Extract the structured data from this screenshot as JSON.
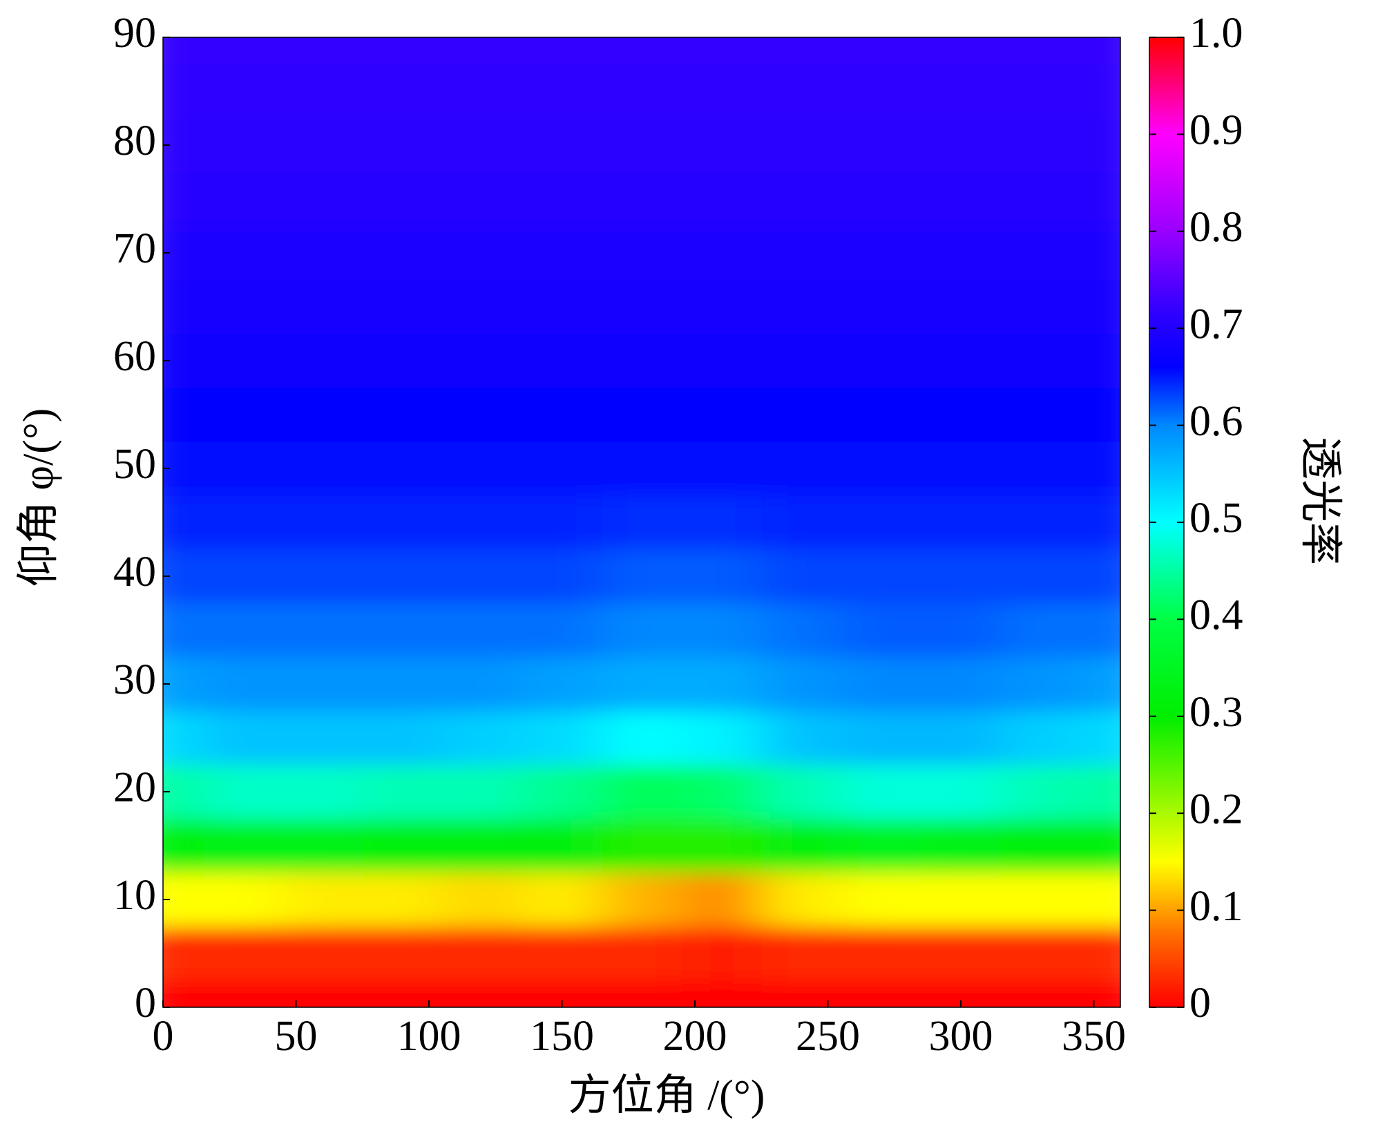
{
  "chart_data": {
    "type": "heatmap",
    "x_label": "方位角 /(°)",
    "y_label": "仰角 φ/(°)",
    "x": [
      0,
      30,
      60,
      90,
      120,
      150,
      180,
      210,
      240,
      270,
      300,
      330,
      360
    ],
    "y": [
      0,
      5,
      10,
      15,
      20,
      25,
      30,
      35,
      40,
      45,
      50,
      55,
      60,
      65,
      70,
      75,
      80,
      85,
      90
    ],
    "z": [
      [
        0,
        0,
        0,
        0,
        0,
        0,
        0,
        0,
        0,
        0,
        0,
        0,
        0
      ],
      [
        0.03,
        0.03,
        0.03,
        0.03,
        0.03,
        0.03,
        0.03,
        0.02,
        0.03,
        0.03,
        0.03,
        0.03,
        0.03
      ],
      [
        0.15,
        0.15,
        0.14,
        0.14,
        0.13,
        0.14,
        0.11,
        0.09,
        0.14,
        0.15,
        0.15,
        0.15,
        0.15
      ],
      [
        0.32,
        0.33,
        0.33,
        0.32,
        0.32,
        0.31,
        0.28,
        0.28,
        0.32,
        0.34,
        0.33,
        0.32,
        0.32
      ],
      [
        0.45,
        0.47,
        0.47,
        0.46,
        0.46,
        0.44,
        0.41,
        0.42,
        0.46,
        0.48,
        0.48,
        0.46,
        0.45
      ],
      [
        0.53,
        0.55,
        0.55,
        0.55,
        0.54,
        0.53,
        0.5,
        0.51,
        0.55,
        0.56,
        0.56,
        0.54,
        0.53
      ],
      [
        0.58,
        0.59,
        0.59,
        0.59,
        0.59,
        0.58,
        0.57,
        0.57,
        0.59,
        0.6,
        0.6,
        0.59,
        0.58
      ],
      [
        0.61,
        0.61,
        0.61,
        0.61,
        0.61,
        0.61,
        0.6,
        0.6,
        0.61,
        0.62,
        0.62,
        0.61,
        0.61
      ],
      [
        0.63,
        0.63,
        0.63,
        0.63,
        0.63,
        0.63,
        0.62,
        0.62,
        0.63,
        0.63,
        0.63,
        0.63,
        0.63
      ],
      [
        0.645,
        0.645,
        0.645,
        0.645,
        0.645,
        0.645,
        0.64,
        0.64,
        0.645,
        0.645,
        0.645,
        0.645,
        0.645
      ],
      [
        0.655,
        0.655,
        0.655,
        0.655,
        0.655,
        0.655,
        0.655,
        0.655,
        0.655,
        0.655,
        0.655,
        0.655,
        0.655
      ],
      [
        0.665,
        0.665,
        0.665,
        0.665,
        0.665,
        0.665,
        0.665,
        0.665,
        0.665,
        0.665,
        0.665,
        0.665,
        0.665
      ],
      [
        0.675,
        0.675,
        0.675,
        0.675,
        0.675,
        0.675,
        0.675,
        0.675,
        0.675,
        0.675,
        0.675,
        0.675,
        0.675
      ],
      [
        0.685,
        0.685,
        0.685,
        0.685,
        0.685,
        0.685,
        0.685,
        0.685,
        0.685,
        0.685,
        0.685,
        0.685,
        0.685
      ],
      [
        0.695,
        0.695,
        0.695,
        0.695,
        0.695,
        0.695,
        0.695,
        0.695,
        0.695,
        0.695,
        0.695,
        0.695,
        0.695
      ],
      [
        0.705,
        0.705,
        0.705,
        0.705,
        0.705,
        0.705,
        0.705,
        0.705,
        0.705,
        0.705,
        0.705,
        0.705,
        0.705
      ],
      [
        0.71,
        0.71,
        0.71,
        0.71,
        0.71,
        0.71,
        0.71,
        0.71,
        0.71,
        0.71,
        0.71,
        0.71,
        0.71
      ],
      [
        0.715,
        0.715,
        0.715,
        0.715,
        0.715,
        0.715,
        0.715,
        0.715,
        0.715,
        0.715,
        0.715,
        0.715,
        0.715
      ],
      [
        0.72,
        0.72,
        0.72,
        0.72,
        0.72,
        0.72,
        0.72,
        0.72,
        0.72,
        0.72,
        0.72,
        0.72,
        0.72
      ]
    ],
    "xlim": [
      0,
      360
    ],
    "ylim": [
      0,
      90
    ],
    "xticks": [
      0,
      50,
      100,
      150,
      200,
      250,
      300,
      350
    ],
    "yticks": [
      0,
      10,
      20,
      30,
      40,
      50,
      60,
      70,
      80,
      90
    ],
    "colorbar": {
      "label": "透光率",
      "lim": [
        0,
        1
      ],
      "ticks": [
        0,
        0.1,
        0.2,
        0.3,
        0.4,
        0.5,
        0.6,
        0.7,
        0.8,
        0.9,
        {
          "value": 1,
          "label": "1.0"
        }
      ],
      "colorscale": [
        [
          0,
          "#ff0000"
        ],
        [
          0.07,
          "#ff6600"
        ],
        [
          0.15,
          "#ffff00"
        ],
        [
          0.3,
          "#00ee00"
        ],
        [
          0.4,
          "#00ff44"
        ],
        [
          0.5,
          "#00ffff"
        ],
        [
          0.6,
          "#0088ff"
        ],
        [
          0.66,
          "#0000ff"
        ],
        [
          0.72,
          "#3300ff"
        ],
        [
          0.8,
          "#9900ff"
        ],
        [
          0.9,
          "#ff00ff"
        ],
        [
          1,
          "#ff0000"
        ]
      ]
    }
  }
}
